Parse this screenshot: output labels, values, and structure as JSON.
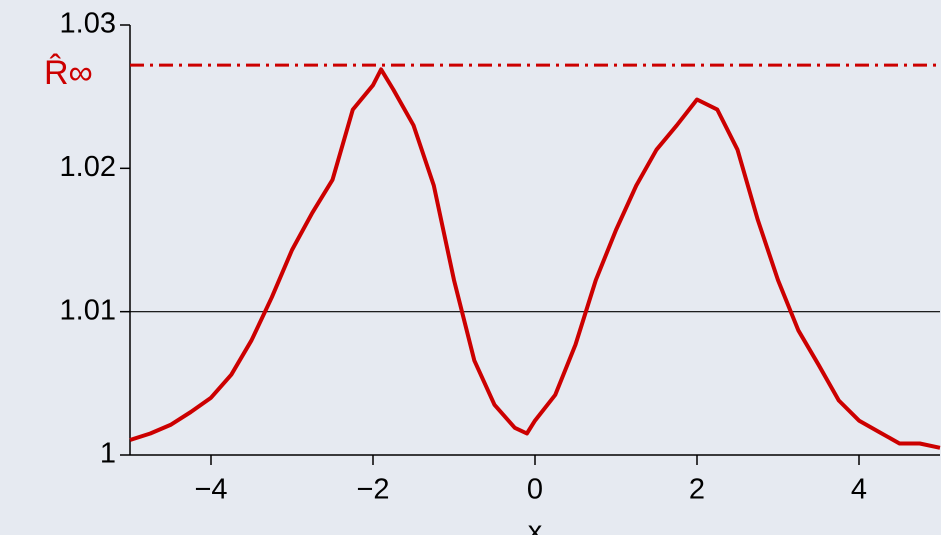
{
  "chart_data": {
    "type": "line",
    "xlabel": "x",
    "x": [
      -5,
      -4.75,
      -4.5,
      -4.25,
      -4,
      -3.75,
      -3.5,
      -3.25,
      -3,
      -2.75,
      -2.5,
      -2.25,
      -2,
      -1.9,
      -1.75,
      -1.5,
      -1.25,
      -1,
      -0.75,
      -0.5,
      -0.25,
      -0.1,
      0,
      0.25,
      0.5,
      0.75,
      1,
      1.25,
      1.5,
      1.75,
      2,
      2.25,
      2.5,
      2.75,
      3,
      3.25,
      3.5,
      3.75,
      4,
      4.25,
      4.5,
      4.75,
      5
    ],
    "series": [
      {
        "color": "#cc0000",
        "values": [
          1.00105,
          1.0015,
          1.0021,
          1.003,
          1.004,
          1.0056,
          1.008,
          1.011,
          1.0143,
          1.0169,
          1.0192,
          1.0241,
          1.0258,
          1.0269,
          1.0255,
          1.023,
          1.0188,
          1.0122,
          1.0066,
          1.0035,
          1.0019,
          1.0015,
          1.0024,
          1.0042,
          1.0077,
          1.0122,
          1.0157,
          1.0188,
          1.0213,
          1.023,
          1.0248,
          1.0241,
          1.0213,
          1.0164,
          1.0122,
          1.0087,
          1.0063,
          1.0038,
          1.0024,
          1.0016,
          1.0008,
          1.0008,
          1.0005
        ]
      }
    ],
    "xlim": [
      -5,
      5
    ],
    "ylim": [
      1,
      1.03
    ],
    "xticks": [
      {
        "value": -4,
        "label": "−4"
      },
      {
        "value": -2,
        "label": "−2"
      },
      0,
      2,
      4
    ],
    "yticks": [
      1,
      1.01,
      1.02,
      1.03
    ],
    "hline": {
      "value": 1.01,
      "color": "#000000"
    },
    "limit_line": {
      "value": 1.0272,
      "label": "R̂∞",
      "color": "#cc0000"
    }
  }
}
